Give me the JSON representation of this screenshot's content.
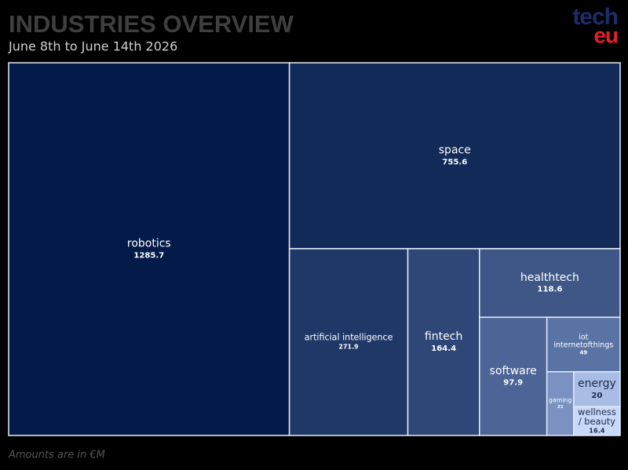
{
  "chart_data": {
    "type": "treemap",
    "title": "INDUSTRIES OVERVIEW",
    "subtitle": "June 8th to June 14th 2026",
    "footnote": "Amounts are in €M",
    "logo": {
      "top": "tech",
      "bottom": "eu"
    },
    "categories": [
      "robotics",
      "space",
      "artificial intelligence",
      "fintech",
      "healthtech",
      "software",
      "iot internetofthings",
      "gaming",
      "energy",
      "wellness / beauty"
    ],
    "values": [
      1285.7,
      755.6,
      271.9,
      164.4,
      118.6,
      97.9,
      49,
      21,
      20,
      16.4
    ],
    "colors": [
      "#041a48",
      "#112a58",
      "#1f3867",
      "#2e4776",
      "#3e5786",
      "#4c6596",
      "#5a73a5",
      "#7b91c1",
      "#a8bde6",
      "#c7d8f8"
    ]
  }
}
